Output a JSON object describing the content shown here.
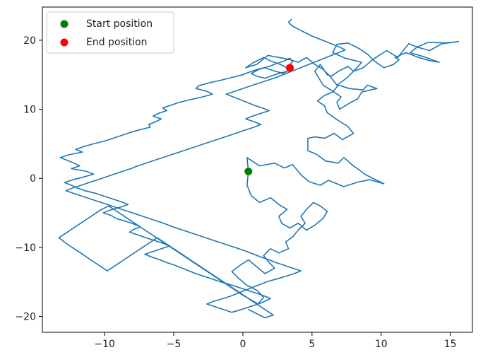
{
  "chart_data": {
    "type": "line",
    "title": "",
    "xlabel": "",
    "ylabel": "",
    "xlim": [
      -14.5,
      16.6
    ],
    "ylim": [
      -22.3,
      24.8
    ],
    "x_ticks": [
      -10,
      -5,
      0,
      5,
      10,
      15
    ],
    "y_ticks": [
      -20,
      -10,
      0,
      10,
      20
    ],
    "x_tick_labels": [
      "−10",
      "−5",
      "0",
      "5",
      "10",
      "15"
    ],
    "y_tick_labels": [
      "−20",
      "−10",
      "0",
      "10",
      "20"
    ],
    "grid": false,
    "legend_position": "top-left",
    "series": [
      {
        "color": "#1f77b4",
        "x": [
          0.4,
          0.3,
          1.2,
          2.3,
          3.0,
          3.6,
          4.2,
          4.8,
          5.6,
          6.2,
          7.3,
          8.4,
          9.2,
          10.2,
          8.9,
          8.0,
          7.3,
          6.9,
          6.0,
          5.3,
          4.7,
          4.7,
          5.2,
          5.9,
          6.6,
          7.2,
          8.0,
          7.6,
          6.8,
          6.1,
          5.9,
          5.4,
          5.9,
          6.5,
          6.9,
          7.7,
          8.7,
          9.0,
          9.7,
          8.6,
          8.3,
          7.8,
          7.0,
          6.8,
          7.1,
          6.6,
          5.8,
          5.2,
          5.6,
          6.1,
          6.4,
          6.9,
          7.6,
          8.0,
          8.7,
          9.4,
          10.4,
          11.2,
          12.0,
          12.6,
          13.5,
          14.4,
          15.6,
          14.6,
          13.4,
          12.6,
          12.1,
          13.1,
          14.2,
          13.6,
          12.7,
          11.8,
          11.0,
          11.3,
          10.9,
          10.2,
          9.5,
          9.0,
          8.4,
          7.6,
          6.8,
          6.5,
          7.4,
          8.6,
          8.0,
          7.5,
          6.8,
          6.3,
          5.8,
          5.2,
          4.6,
          4.0,
          3.4,
          2.6,
          1.8,
          1.0,
          0.2,
          0.8,
          1.5,
          2.0,
          2.7,
          3.4,
          3.6,
          3.2,
          2.3,
          1.6,
          1.0,
          0.6,
          1.2,
          1.6,
          2.2,
          2.9,
          3.5,
          3.4,
          3.6,
          3.4,
          3.0,
          2.4,
          1.9,
          1.1,
          0.5,
          0.0,
          -0.8,
          -1.6,
          -2.5,
          -3.2,
          -3.4,
          -2.6,
          -2.2,
          -2.9,
          -3.8,
          -4.6,
          -5.2,
          -5.8,
          -5.5,
          -6.1,
          -6.5,
          -5.9,
          -6.3,
          -6.8,
          -6.7,
          -7.5,
          -8.2,
          -8.8,
          -9.4,
          -10.0,
          -10.8,
          -11.5,
          -12.1,
          -11.6,
          -12.6,
          -13.2,
          -12.7,
          -12.2,
          -11.8,
          -12.4,
          -11.3,
          -10.8,
          -11.5,
          -12.3,
          -12.9,
          -12.4,
          -12.0,
          -11.4,
          -10.6,
          -10.0,
          -9.4,
          -8.8,
          -8.3,
          -8.9,
          -9.6,
          -10.1,
          -9.5,
          -9.2,
          -8.5,
          -7.9,
          -7.4,
          -7.9,
          -8.2,
          -7.6,
          -7.0,
          -6.4,
          -5.8,
          -5.3,
          -5.9,
          -6.5,
          -7.1,
          -6.6,
          -6.0,
          -5.5,
          -4.9,
          -4.4,
          -3.9,
          -3.4,
          -2.8,
          -2.2,
          -1.6,
          -0.9,
          -0.3,
          0.3,
          0.9,
          1.5,
          2.0,
          1.6,
          1.1,
          0.5,
          -0.1,
          -0.8,
          -1.4,
          -2.0,
          -2.6,
          -2.1,
          -1.4,
          -0.8,
          -0.3,
          0.2,
          0.7,
          1.2,
          1.7,
          2.4,
          3.1,
          3.7,
          4.2,
          3.6,
          3.0,
          2.4,
          1.9,
          1.3,
          0.8,
          0.3,
          -0.3,
          -0.9,
          -1.5,
          -2.1,
          -2.7,
          -3.3,
          -3.9,
          -4.5,
          -5.1,
          -5.6,
          -6.2,
          -6.8,
          -7.4,
          -8.0,
          -8.6,
          -9.2,
          -9.8,
          -10.4,
          -11.0,
          -11.6,
          -12.2,
          -12.8,
          -12.3,
          -11.7,
          -11.1,
          -10.5,
          -9.9,
          -9.3,
          -8.7,
          -8.1,
          -7.6,
          -7.0,
          -6.4,
          -5.8,
          -5.2,
          -4.6,
          -4.0,
          -3.4,
          -2.8,
          -2.2,
          -1.6,
          -1.0,
          -0.4,
          0.2,
          0.8,
          1.3,
          0.8,
          0.2,
          0.7,
          1.3,
          1.9,
          1.4,
          0.8,
          0.3,
          -0.2,
          -0.7,
          -1.2,
          -0.6,
          0.0,
          0.6,
          1.2,
          1.8,
          2.4,
          2.9,
          3.4,
          3.9,
          4.4,
          4.9,
          5.4,
          5.9,
          6.4,
          6.9,
          7.4,
          7.0,
          6.5,
          6.0,
          5.5,
          5.0,
          4.6,
          4.2,
          3.8,
          3.5,
          3.3,
          3.5
        ],
        "y": [
          1.0,
          3.0,
          1.8,
          2.2,
          1.5,
          2.0,
          0.5,
          -0.5,
          -1.0,
          -0.3,
          -1.2,
          -0.5,
          -0.2,
          -0.8,
          0.5,
          1.8,
          3.0,
          2.2,
          2.5,
          3.5,
          4.0,
          5.8,
          6.0,
          5.8,
          6.5,
          5.6,
          6.5,
          7.5,
          8.5,
          9.5,
          10.5,
          11.2,
          12.0,
          12.5,
          13.5,
          13.0,
          12.8,
          13.5,
          13.0,
          12.5,
          11.5,
          11.0,
          10.0,
          11.0,
          11.8,
          12.5,
          13.5,
          15.5,
          16.5,
          15.0,
          14.8,
          15.5,
          16.2,
          15.5,
          16.0,
          17.2,
          18.5,
          17.5,
          19.5,
          19.0,
          18.5,
          19.5,
          19.8,
          19.6,
          19.7,
          19.0,
          18.2,
          17.6,
          16.8,
          17.0,
          17.5,
          18.2,
          17.5,
          17.2,
          16.5,
          16.0,
          17.0,
          18.0,
          18.8,
          19.6,
          19.4,
          18.2,
          17.4,
          16.8,
          15.5,
          14.5,
          13.5,
          14.8,
          15.8,
          16.5,
          17.5,
          16.8,
          17.2,
          17.5,
          17.8,
          16.5,
          16.0,
          16.8,
          17.5,
          17.0,
          16.5,
          15.8,
          16.0,
          15.5,
          15.0,
          14.5,
          14.8,
          15.2,
          15.8,
          16.0,
          15.6,
          15.2,
          15.8,
          16.5,
          16.9,
          17.4,
          17.0,
          16.6,
          16.2,
          15.8,
          15.4,
          15.0,
          14.6,
          14.2,
          13.8,
          13.4,
          13.0,
          12.6,
          12.2,
          11.8,
          11.4,
          11.0,
          10.6,
          10.2,
          9.8,
          9.4,
          9.0,
          8.6,
          8.2,
          7.8,
          7.4,
          7.0,
          6.6,
          6.2,
          5.8,
          5.4,
          5.0,
          4.6,
          4.2,
          3.8,
          3.4,
          3.0,
          2.6,
          2.2,
          1.8,
          1.4,
          1.0,
          0.6,
          0.2,
          -0.2,
          -0.6,
          -1.0,
          -1.4,
          -1.8,
          -2.2,
          -2.6,
          -3.0,
          -3.4,
          -3.8,
          -4.2,
          -4.6,
          -5.0,
          -5.4,
          -5.8,
          -6.2,
          -6.6,
          -7.0,
          -7.4,
          -7.8,
          -8.2,
          -8.6,
          -9.0,
          -9.4,
          -9.8,
          -10.2,
          -10.6,
          -11.0,
          -11.4,
          -11.8,
          -12.2,
          -12.6,
          -13.0,
          -13.4,
          -13.8,
          -14.2,
          -14.6,
          -15.0,
          -15.4,
          -15.8,
          -16.2,
          -16.6,
          -17.0,
          -17.4,
          -17.8,
          -18.2,
          -18.6,
          -19.0,
          -19.4,
          -19.0,
          -18.6,
          -18.2,
          -17.8,
          -17.4,
          -17.0,
          -16.6,
          -16.2,
          -15.8,
          -15.4,
          -15.0,
          -14.6,
          -14.2,
          -13.8,
          -13.4,
          -13.0,
          -12.6,
          -12.2,
          -11.8,
          -11.4,
          -11.0,
          -10.6,
          -10.2,
          -9.8,
          -9.4,
          -9.0,
          -8.6,
          -8.2,
          -7.8,
          -7.4,
          -7.0,
          -6.6,
          -6.2,
          -5.8,
          -5.4,
          -5.0,
          -4.6,
          -4.2,
          -3.8,
          -3.4,
          -3.0,
          -2.6,
          -2.2,
          -1.8,
          -1.4,
          -1.0,
          -0.6,
          -0.2,
          0.2,
          0.6,
          1.0,
          1.4,
          1.8,
          2.2,
          2.6,
          3.0,
          3.4,
          3.8,
          4.2,
          4.6,
          5.0,
          5.4,
          5.8,
          6.2,
          6.6,
          7.0,
          7.4,
          7.8,
          8.2,
          8.6,
          9.0,
          9.4,
          9.8,
          10.2,
          10.6,
          11.0,
          11.4,
          11.8,
          12.2,
          12.6,
          13.0,
          13.4,
          13.8,
          14.2,
          14.6,
          15.0,
          15.4,
          15.8,
          16.2,
          16.6,
          17.0,
          17.4,
          17.8,
          18.2,
          18.6,
          19.0,
          19.4,
          19.8,
          20.2,
          20.6,
          21.0,
          21.4,
          21.8,
          22.2,
          22.6,
          23.0
        ]
      },
      {
        "color": "#1f77b4",
        "x": [
          0.4,
          0.3,
          0.6,
          1.2,
          2.0,
          2.6,
          3.2,
          2.6,
          2.8,
          3.4,
          4.0,
          4.6,
          5.2,
          5.8,
          6.1,
          5.6,
          5.1,
          4.6,
          4.2,
          4.5,
          4.0,
          3.6,
          3.1,
          3.3,
          2.6,
          2.0,
          1.5,
          1.9,
          2.3,
          1.6,
          1.0,
          0.4,
          -0.2,
          -0.8,
          -0.3,
          0.3,
          1.0,
          1.5,
          1.1,
          0.5,
          -0.1,
          -0.7,
          -1.3,
          -1.9,
          -2.5,
          -3.1,
          -3.7,
          -4.3,
          -4.9,
          -5.5,
          -6.1,
          -6.7,
          -7.3,
          -7.9,
          -8.5,
          -9.1,
          -9.7,
          -10.3,
          -10.9,
          -11.5,
          -12.1,
          -12.7,
          -13.3,
          -12.8,
          -12.2,
          -11.6,
          -11.0,
          -10.4,
          -9.8,
          -9.2,
          -8.6,
          -8.0,
          -7.4,
          -6.8,
          -6.2,
          -5.6,
          -5.0,
          -4.4,
          -3.8,
          -3.2,
          -2.6,
          -2.0,
          -1.4,
          -0.8,
          -0.2,
          0.4,
          1.0,
          1.6,
          2.2,
          1.6,
          1.0,
          0.4
        ],
        "y": [
          1.0,
          -1.0,
          -2.5,
          -3.5,
          -2.8,
          -3.8,
          -4.5,
          -5.5,
          -6.5,
          -7.2,
          -6.5,
          -7.5,
          -6.8,
          -5.8,
          -4.8,
          -4.0,
          -3.5,
          -4.5,
          -5.5,
          -6.5,
          -7.5,
          -8.5,
          -9.2,
          -10.2,
          -10.8,
          -10.2,
          -11.2,
          -12.2,
          -13.0,
          -13.8,
          -12.8,
          -11.8,
          -12.6,
          -13.5,
          -14.5,
          -15.5,
          -16.2,
          -17.2,
          -18.2,
          -17.5,
          -16.8,
          -16.0,
          -15.2,
          -14.4,
          -13.6,
          -12.8,
          -12.0,
          -11.2,
          -10.4,
          -9.6,
          -8.8,
          -8.0,
          -7.2,
          -6.4,
          -5.6,
          -4.8,
          -4.0,
          -4.6,
          -5.4,
          -6.2,
          -7.0,
          -7.8,
          -8.6,
          -9.4,
          -10.2,
          -11.0,
          -11.8,
          -12.6,
          -13.4,
          -12.6,
          -11.8,
          -11.0,
          -10.2,
          -9.4,
          -8.6,
          -9.4,
          -10.2,
          -11.0,
          -11.8,
          -12.6,
          -13.4,
          -14.2,
          -15.0,
          -15.8,
          -16.6,
          -17.4,
          -18.2,
          -19.0,
          -19.8,
          -20.2,
          -19.6,
          -19.0
        ]
      }
    ],
    "scatter": [
      {
        "name": "Start position",
        "x": 0.4,
        "y": 1.0,
        "color": "#008000"
      },
      {
        "name": "End position",
        "x": 3.4,
        "y": 16.0,
        "color": "#ff0000"
      }
    ]
  }
}
